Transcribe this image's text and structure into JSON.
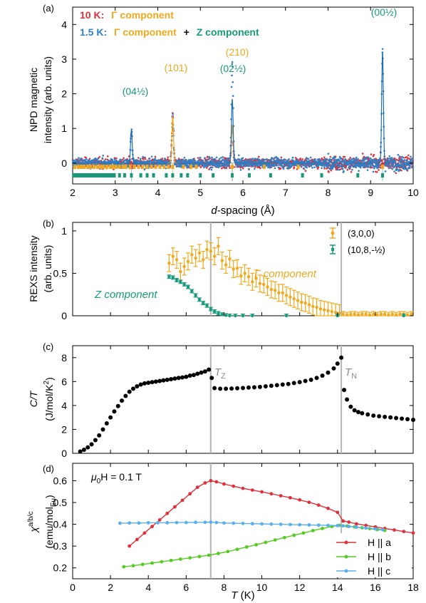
{
  "colors": {
    "red": "#e0303a",
    "blue": "#2f7fc6",
    "orange": "#f2a81c",
    "teal": "#179a7a",
    "black": "#000000",
    "green": "#55cc22",
    "lightblue": "#5ab0ee",
    "gray": "#b5b5b5"
  },
  "chart_data": [
    {
      "panel": "a",
      "type": "scatter",
      "panel_label": "(a)",
      "ylabel_lines": [
        "NPD magnetic",
        "intensity (arb. units)"
      ],
      "xlabel_italic": "d",
      "xlabel_rest": "-spacing (Å)",
      "xlim": [
        2,
        10
      ],
      "ylim": [
        -0.6,
        4.5
      ],
      "xticks": [
        2,
        3,
        4,
        5,
        6,
        7,
        8,
        9,
        10
      ],
      "yticks": [
        0,
        1,
        2,
        3,
        4
      ],
      "legend": {
        "line1_temp": "10 K:",
        "line1_comp": "Γ component",
        "line2_temp": "1.5 K:",
        "line2_comp_a": "Γ component",
        "line2_plus": "+",
        "line2_comp_b": "Z component"
      },
      "peaks": [
        {
          "label": "(04½)",
          "d": 3.38,
          "height": 0.95,
          "series": "Z"
        },
        {
          "label": "(101)",
          "d": 4.35,
          "height": 1.35,
          "series": "Γ"
        },
        {
          "label": "(210)",
          "d": 5.75,
          "height": 1.1,
          "series": "Γ"
        },
        {
          "label": "(02½)",
          "d": 5.75,
          "height": 1.85,
          "series": "Z"
        },
        {
          "label": "(00½)",
          "d": 9.28,
          "height": 3.2,
          "series": "Z"
        }
      ],
      "series": [
        {
          "name": "10 K",
          "color": "red"
        },
        {
          "name": "1.5 K",
          "color": "blue"
        }
      ]
    },
    {
      "panel": "b",
      "type": "scatter",
      "panel_label": "(b)",
      "ylabel_lines": [
        "REXS intensity",
        "(arb. units)"
      ],
      "xlim": [
        0,
        18
      ],
      "ylim": [
        0,
        1.1
      ],
      "yticks": [
        0,
        0.5,
        1
      ],
      "yticklabels": [
        "0",
        "0.5",
        "1"
      ],
      "legend": [
        "(3,0,0)",
        "(10,8,-½)"
      ],
      "annotations": {
        "gamma": "Γ component",
        "z": "Z component"
      },
      "series": [
        {
          "name": "(3,0,0)",
          "color": "orange",
          "x": [
            5.1,
            5.3,
            5.5,
            5.7,
            5.9,
            6.1,
            6.3,
            6.5,
            6.7,
            6.9,
            7.1,
            7.3,
            7.5,
            7.7,
            7.9,
            8.1,
            8.3,
            8.5,
            8.7,
            8.9,
            9.1,
            9.3,
            9.5,
            9.7,
            9.9,
            10.1,
            10.3,
            10.5,
            10.7,
            10.9,
            11.1,
            11.3,
            11.5,
            11.7,
            11.9,
            12.1,
            12.3,
            12.5,
            12.7,
            12.9,
            13.1,
            13.3,
            13.5,
            13.7,
            13.9,
            14.1
          ],
          "y": [
            0.62,
            0.7,
            0.66,
            0.52,
            0.58,
            0.64,
            0.72,
            0.68,
            0.74,
            0.66,
            0.78,
            0.76,
            0.7,
            0.82,
            0.65,
            0.6,
            0.67,
            0.55,
            0.56,
            0.47,
            0.5,
            0.46,
            0.4,
            0.44,
            0.38,
            0.37,
            0.34,
            0.31,
            0.3,
            0.27,
            0.27,
            0.24,
            0.22,
            0.2,
            0.18,
            0.16,
            0.15,
            0.13,
            0.11,
            0.1,
            0.08,
            0.07,
            0.06,
            0.05,
            0.04,
            0.03
          ],
          "yerr": 0.1
        },
        {
          "name": "(3,0,0) above T_N",
          "color": "orange",
          "x": [
            14.3,
            14.5,
            14.7,
            14.9,
            15.1,
            15.3,
            15.5,
            15.7,
            15.9,
            16.1,
            16.3,
            16.5,
            16.7,
            16.9,
            17.1,
            17.3,
            17.5,
            17.7,
            17.9
          ],
          "y": [
            0.02,
            0.01,
            0.02,
            0.02,
            0.01,
            0.02,
            0.02,
            0.01,
            0.02,
            0.01,
            0.02,
            0.02,
            0.01,
            0.02,
            0.01,
            0.02,
            0.02,
            0.01,
            0.02
          ],
          "yerr": 0.03
        },
        {
          "name": "(10,8,-½)",
          "color": "teal",
          "x": [
            5.1,
            5.3,
            5.5,
            5.7,
            5.9,
            6.1,
            6.3,
            6.5,
            6.7,
            6.9,
            7.1,
            7.3,
            7.5,
            7.7,
            7.9,
            8.1,
            8.3,
            8.6,
            9.0,
            9.5,
            11.3,
            14.0,
            17.5
          ],
          "y": [
            0.46,
            0.45,
            0.42,
            0.4,
            0.37,
            0.34,
            0.29,
            0.24,
            0.19,
            0.15,
            0.12,
            0.08,
            0.05,
            0.03,
            0.015,
            0.005,
            0.0,
            0.0,
            0.0,
            0.0,
            0.0,
            0.0,
            0.0
          ],
          "yerr": 0.02
        }
      ]
    },
    {
      "panel": "c",
      "type": "scatter",
      "panel_label": "(c)",
      "ylabel_top": "C/T",
      "ylabel_bottom": "(J/mol/K",
      "ylabel_sup": "2",
      "ylabel_close": ")",
      "xlim": [
        0,
        18
      ],
      "ylim": [
        0,
        9
      ],
      "yticks": [
        0,
        2,
        4,
        6,
        8
      ],
      "annotations": {
        "tz_main": "T",
        "tz_sub": "Z",
        "tn_main": "T",
        "tn_sub": "N"
      },
      "series": [
        {
          "name": "C/T",
          "color": "black",
          "x": [
            0.4,
            0.6,
            0.8,
            1.0,
            1.2,
            1.4,
            1.6,
            1.8,
            2.0,
            2.2,
            2.4,
            2.6,
            2.8,
            3.0,
            3.2,
            3.4,
            3.6,
            3.8,
            4.0,
            4.2,
            4.4,
            4.6,
            4.8,
            5.0,
            5.2,
            5.4,
            5.6,
            5.8,
            6.0,
            6.2,
            6.4,
            6.6,
            6.8,
            7.0,
            7.2,
            7.35,
            7.5,
            7.8,
            8.1,
            8.4,
            8.7,
            9.0,
            9.3,
            9.6,
            9.9,
            10.2,
            10.5,
            10.8,
            11.1,
            11.4,
            11.7,
            12.0,
            12.3,
            12.6,
            12.9,
            13.2,
            13.5,
            13.8,
            14.0,
            14.2,
            14.35,
            14.5,
            14.7,
            14.9,
            15.1,
            15.3,
            15.6,
            15.9,
            16.2,
            16.5,
            16.8,
            17.1,
            17.4,
            17.7,
            18.0
          ],
          "y": [
            0.15,
            0.3,
            0.5,
            0.75,
            1.1,
            1.5,
            2.0,
            2.5,
            3.0,
            3.5,
            3.95,
            4.4,
            4.8,
            5.15,
            5.4,
            5.6,
            5.75,
            5.85,
            5.9,
            5.95,
            6.0,
            6.05,
            6.1,
            6.15,
            6.2,
            6.25,
            6.3,
            6.35,
            6.4,
            6.5,
            6.55,
            6.65,
            6.75,
            6.85,
            7.0,
            6.3,
            5.45,
            5.4,
            5.4,
            5.42,
            5.44,
            5.46,
            5.5,
            5.52,
            5.55,
            5.6,
            5.65,
            5.7,
            5.75,
            5.8,
            5.88,
            5.95,
            6.05,
            6.15,
            6.3,
            6.5,
            6.75,
            7.1,
            7.5,
            8.0,
            5.3,
            4.5,
            3.9,
            3.6,
            3.45,
            3.35,
            3.25,
            3.15,
            3.1,
            3.05,
            3.0,
            2.95,
            2.9,
            2.85,
            2.8
          ]
        }
      ]
    },
    {
      "panel": "d",
      "type": "line",
      "panel_label": "(d)",
      "ylabel_chi": "χ",
      "ylabel_chi_sup": "a/b/c",
      "ylabel_unit": "(emu/mol",
      "ylabel_unit_sub": "Eu",
      "ylabel_unit_close": ")",
      "xlabel_italic": "T",
      "xlabel_rest": " (K)",
      "xlim": [
        0,
        18
      ],
      "ylim": [
        0.15,
        0.68
      ],
      "xticks": [
        0,
        2,
        4,
        6,
        8,
        10,
        12,
        14,
        16,
        18
      ],
      "yticks": [
        0.2,
        0.3,
        0.4,
        0.5,
        0.6
      ],
      "yticklabels": [
        "0.2",
        "0.3",
        "0.4",
        "0.5",
        "0.6"
      ],
      "field_label": {
        "mu": "μ",
        "sub": "0",
        "rest": "H = 0.1 T"
      },
      "legend": [
        "H || a",
        "H || b",
        "H || c"
      ],
      "series": [
        {
          "name": "H || a",
          "color": "red",
          "x": [
            3.0,
            3.4,
            3.8,
            4.2,
            4.6,
            5.0,
            5.4,
            5.8,
            6.2,
            6.6,
            7.0,
            7.3,
            7.6,
            8.0,
            8.5,
            9.0,
            9.5,
            10.0,
            10.5,
            11.0,
            11.5,
            12.0,
            12.5,
            13.0,
            13.5,
            14.0,
            14.3,
            14.6,
            15.0,
            15.5,
            16.0,
            16.5,
            17.0,
            17.5,
            18.0
          ],
          "y": [
            0.3,
            0.33,
            0.36,
            0.39,
            0.42,
            0.45,
            0.48,
            0.51,
            0.54,
            0.57,
            0.59,
            0.6,
            0.595,
            0.585,
            0.575,
            0.565,
            0.557,
            0.549,
            0.54,
            0.531,
            0.522,
            0.512,
            0.501,
            0.488,
            0.473,
            0.455,
            0.415,
            0.41,
            0.402,
            0.395,
            0.388,
            0.381,
            0.374,
            0.367,
            0.36
          ]
        },
        {
          "name": "H || b",
          "color": "green",
          "x": [
            2.7,
            3.2,
            3.7,
            4.2,
            4.7,
            5.2,
            5.7,
            6.2,
            6.7,
            7.2,
            7.7,
            8.2,
            8.7,
            9.2,
            9.7,
            10.2,
            10.7,
            11.2,
            11.7,
            12.2,
            12.7,
            13.2,
            13.7,
            14.1,
            14.5,
            14.9,
            15.3,
            15.7,
            16.1,
            16.5
          ],
          "y": [
            0.205,
            0.21,
            0.216,
            0.222,
            0.228,
            0.234,
            0.24,
            0.246,
            0.252,
            0.258,
            0.266,
            0.275,
            0.285,
            0.296,
            0.306,
            0.317,
            0.328,
            0.339,
            0.35,
            0.36,
            0.371,
            0.381,
            0.39,
            0.395,
            0.392,
            0.388,
            0.384,
            0.38,
            0.376,
            0.372
          ]
        },
        {
          "name": "H || c",
          "color": "lightblue",
          "x": [
            2.5,
            3.0,
            3.5,
            4.0,
            4.5,
            5.0,
            5.5,
            6.0,
            6.5,
            7.0,
            7.3,
            7.6,
            8.0,
            8.5,
            9.0,
            9.5,
            10.0,
            10.5,
            11.0,
            11.5,
            12.0,
            12.5,
            13.0,
            13.5,
            14.0,
            14.3,
            14.6,
            15.0,
            15.5,
            16.0,
            16.4
          ],
          "y": [
            0.405,
            0.406,
            0.406,
            0.407,
            0.407,
            0.407,
            0.408,
            0.408,
            0.409,
            0.409,
            0.41,
            0.408,
            0.406,
            0.405,
            0.404,
            0.403,
            0.402,
            0.401,
            0.4,
            0.399,
            0.398,
            0.397,
            0.396,
            0.395,
            0.394,
            0.393,
            0.39,
            0.387,
            0.383,
            0.379,
            0.375
          ]
        }
      ]
    }
  ],
  "transitions": {
    "TZ": 7.3,
    "TN": 14.2
  }
}
